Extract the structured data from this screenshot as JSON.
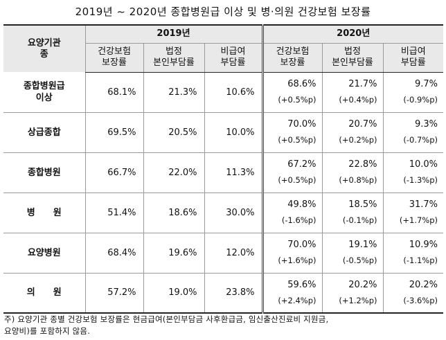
{
  "title": "2019년 ~ 2020년 종합병원급 이상 및 병·의원 건강보험 보장률",
  "header": {
    "institution_type": "요양기관\n종",
    "year_2019": "2019년",
    "year_2020": "2020년",
    "col_coverage": "건강보험\n보장률",
    "col_copay": "법정\n본인부담률",
    "col_noncovered": "비급여\n부담률"
  },
  "rows": [
    {
      "name": "종합병원급\n이상",
      "y2019": [
        "68.1%",
        "21.3%",
        "10.6%"
      ],
      "y2020": [
        "68.6%",
        "21.7%",
        "9.7%"
      ],
      "delta": [
        "(+0.5%p)",
        "(+0.4%p)",
        "(-0.9%p)"
      ]
    },
    {
      "name": "상급종합",
      "y2019": [
        "69.5%",
        "20.5%",
        "10.0%"
      ],
      "y2020": [
        "70.0%",
        "20.7%",
        "9.3%"
      ],
      "delta": [
        "(+0.5%p)",
        "(+0.2%p)",
        "(-0.7%p)"
      ]
    },
    {
      "name": "종합병원",
      "y2019": [
        "66.7%",
        "22.0%",
        "11.3%"
      ],
      "y2020": [
        "67.2%",
        "22.8%",
        "10.0%"
      ],
      "delta": [
        "(+0.5%p)",
        "(+0.8%p)",
        "(-1.3%p)"
      ]
    },
    {
      "name": "병　　원",
      "y2019": [
        "51.4%",
        "18.6%",
        "30.0%"
      ],
      "y2020": [
        "49.8%",
        "18.5%",
        "31.7%"
      ],
      "delta": [
        "(-1.6%p)",
        "(-0.1%p)",
        "(+1.7%p)"
      ]
    },
    {
      "name": "요양병원",
      "y2019": [
        "68.4%",
        "19.6%",
        "12.0%"
      ],
      "y2020": [
        "70.0%",
        "19.1%",
        "10.9%"
      ],
      "delta": [
        "(+1.6%p)",
        "(-0.5%p)",
        "(-1.1%p)"
      ]
    },
    {
      "name": "의　　원",
      "y2019": [
        "57.2%",
        "19.0%",
        "23.8%"
      ],
      "y2020": [
        "59.6%",
        "20.2%",
        "20.2%"
      ],
      "delta": [
        "(+2.4%p)",
        "(+1.2%p)",
        "(-3.6%p)"
      ]
    }
  ],
  "footnote": "주) 요양기관 종별 건강보험 보장률은 현금급여(본인부담금 사후환급금, 임신출산진료비 지원금,\n요양비)를 포함하지 않음."
}
